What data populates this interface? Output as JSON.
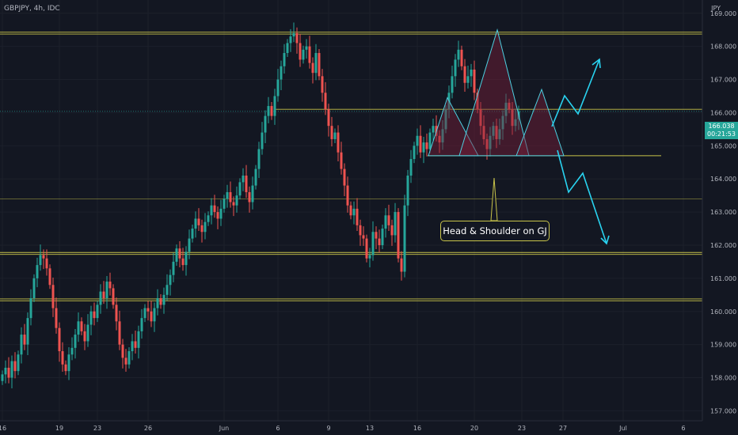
{
  "header": {
    "symbol": "GBPJPY, 4h, IDC",
    "currency": "JPY"
  },
  "price_box": {
    "price": "166.038",
    "countdown": "00:21:53"
  },
  "annotation": {
    "text": "Head & Shoulder on GJ"
  },
  "colors": {
    "background": "#131722",
    "up": "#26a69a",
    "down": "#ef5350",
    "support_resistance": "#c8c44a",
    "pattern": "#4dd0e1",
    "pattern_fill": "#7b1f3a",
    "arrow": "#29d3f0"
  },
  "chart_data": {
    "type": "candlestick",
    "title": "",
    "xlabel": "",
    "ylabel": "JPY",
    "ylim": [
      156.7,
      169.4
    ],
    "y_ticks": [
      "169.000",
      "168.000",
      "167.000",
      "166.000",
      "165.000",
      "164.000",
      "163.000",
      "162.000",
      "161.000",
      "160.000",
      "159.000",
      "158.000",
      "157.000"
    ],
    "x_ticks": [
      "16",
      "19",
      "23",
      "26",
      "Jun",
      "6",
      "9",
      "13",
      "16",
      "20",
      "23",
      "27",
      "Jul",
      "6"
    ],
    "x_tick_index": [
      0,
      18,
      30,
      46,
      70,
      87,
      103,
      116,
      131,
      149,
      164,
      177,
      196,
      215
    ],
    "horizontal_levels": [
      168.4,
      161.75,
      160.35,
      163.4
    ],
    "neckline": 164.7,
    "last_price": 166.038,
    "closes": [
      158.1,
      158.3,
      158.0,
      158.5,
      158.2,
      158.7,
      159.3,
      159.0,
      159.8,
      160.4,
      161.0,
      161.4,
      161.7,
      161.6,
      161.3,
      160.8,
      160.1,
      159.5,
      158.8,
      158.4,
      158.2,
      158.7,
      158.9,
      159.3,
      159.7,
      159.4,
      159.1,
      159.6,
      160.0,
      159.8,
      160.2,
      160.6,
      160.4,
      160.9,
      160.7,
      160.2,
      159.7,
      159.0,
      158.6,
      158.4,
      158.8,
      159.1,
      158.9,
      159.4,
      159.8,
      160.1,
      160.0,
      159.7,
      160.1,
      160.4,
      160.2,
      160.5,
      160.8,
      161.1,
      161.5,
      161.9,
      161.6,
      161.4,
      161.8,
      162.2,
      162.5,
      162.8,
      162.6,
      162.4,
      162.7,
      162.9,
      163.2,
      163.0,
      162.8,
      163.1,
      163.4,
      163.6,
      163.3,
      163.2,
      163.5,
      163.9,
      164.1,
      163.6,
      163.3,
      163.8,
      164.3,
      164.9,
      165.4,
      165.9,
      166.2,
      165.9,
      166.5,
      167.0,
      167.4,
      167.8,
      168.1,
      168.3,
      168.4,
      168.1,
      167.6,
      167.9,
      168.0,
      167.5,
      167.2,
      167.8,
      167.1,
      166.6,
      166.1,
      165.6,
      165.2,
      165.4,
      164.8,
      164.3,
      163.8,
      163.2,
      162.9,
      163.1,
      162.6,
      162.3,
      162.2,
      161.6,
      161.7,
      162.4,
      162.2,
      162.0,
      162.5,
      162.9,
      162.6,
      162.3,
      163.0,
      161.6,
      161.2,
      163.2,
      164.1,
      164.6,
      165.0,
      165.3,
      164.8,
      165.1,
      164.9,
      165.4,
      165.6,
      165.3,
      165.1,
      165.5,
      166.1,
      166.6,
      167.1,
      167.6,
      167.9,
      167.4,
      166.9,
      167.1,
      167.3,
      166.6,
      166.1,
      165.6,
      165.2,
      164.9,
      165.3,
      165.6,
      165.2,
      165.5,
      165.9,
      166.3,
      166.1,
      165.6,
      165.8,
      166.04
    ]
  }
}
